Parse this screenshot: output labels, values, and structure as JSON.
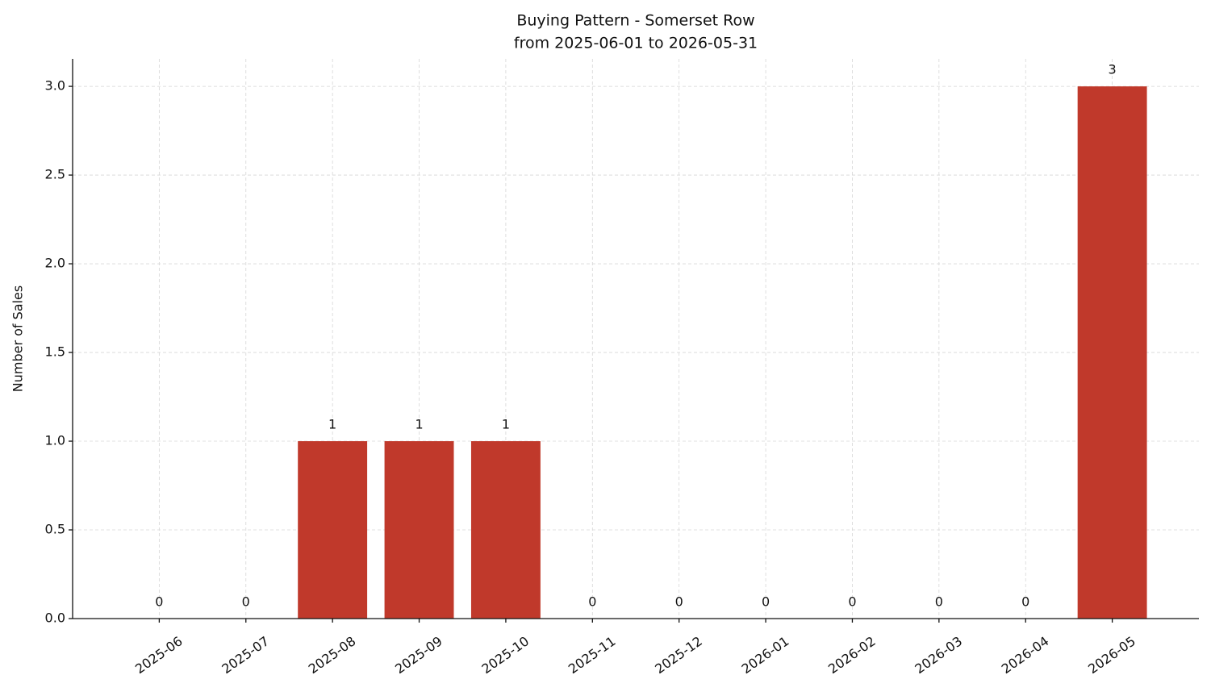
{
  "chart_data": {
    "type": "bar",
    "title": "Buying Pattern - Somerset Row",
    "subtitle": "from 2025-06-01 to 2026-05-31",
    "y_label": "Number of Sales",
    "categories": [
      "2025-06",
      "2025-07",
      "2025-08",
      "2025-09",
      "2025-10",
      "2025-11",
      "2025-12",
      "2026-01",
      "2026-02",
      "2026-03",
      "2026-04",
      "2026-05"
    ],
    "values": [
      0,
      0,
      1,
      1,
      1,
      0,
      0,
      0,
      0,
      0,
      0,
      3
    ],
    "color": "#c0392b",
    "ylim": [
      0,
      3.155
    ],
    "yticks": [
      {
        "value": 0,
        "label": "0.0"
      },
      0.5,
      {
        "value": 1,
        "label": "1.0"
      },
      1.5,
      {
        "value": 2,
        "label": "2.0"
      },
      2.5,
      {
        "value": 3,
        "label": "3.0"
      }
    ],
    "grid": true
  }
}
